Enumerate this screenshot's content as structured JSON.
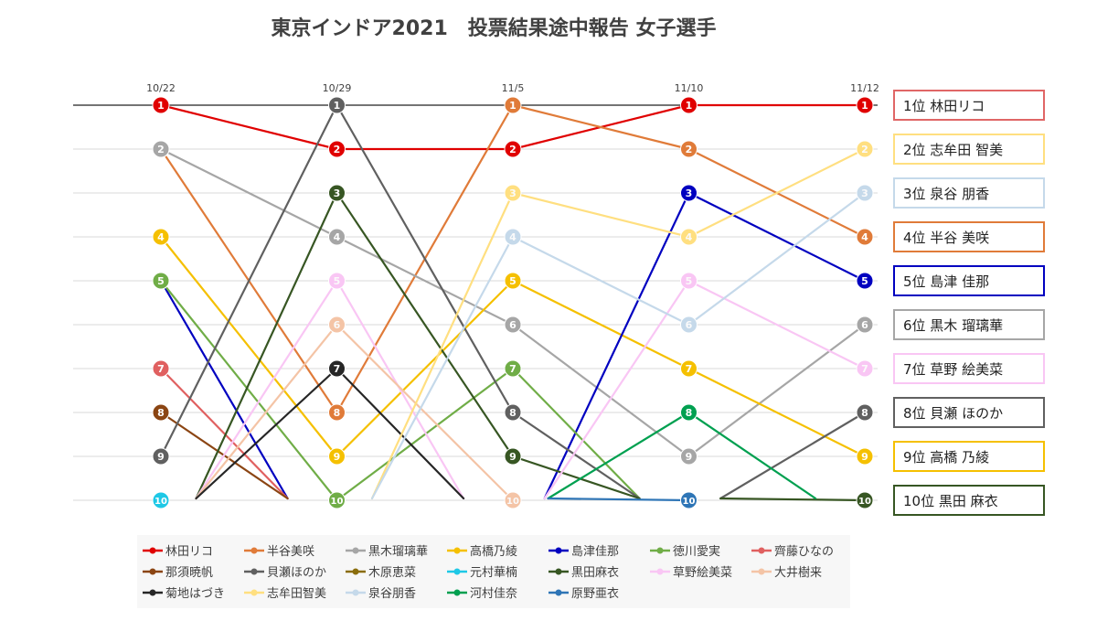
{
  "chart_data": {
    "type": "line",
    "title": "東京インドア2021　投票結果途中報告 女子選手",
    "x": [
      "10/22",
      "10/29",
      "11/5",
      "11/10",
      "11/12"
    ],
    "ylim": [
      1,
      10
    ],
    "y_reversed": true,
    "grid": true,
    "legend_position": "bottom",
    "series": [
      {
        "name": "林田リコ",
        "color": "#e00000",
        "values": [
          1,
          2,
          2,
          1,
          1
        ]
      },
      {
        "name": "半谷美咲",
        "color": "#e07b39",
        "values": [
          2,
          8,
          1,
          2,
          4
        ]
      },
      {
        "name": "黒木瑠璃華",
        "color": "#a6a6a6",
        "values": [
          2,
          4,
          6,
          9,
          6
        ]
      },
      {
        "name": "高橋乃綾",
        "color": "#f5c000",
        "values": [
          4,
          9,
          5,
          7,
          9
        ]
      },
      {
        "name": "島津佳那",
        "color": "#0000c0",
        "values": [
          5,
          null,
          null,
          3,
          5
        ]
      },
      {
        "name": "徳川愛実",
        "color": "#70ad47",
        "values": [
          5,
          10,
          7,
          null,
          null
        ]
      },
      {
        "name": "齊藤ひなの",
        "color": "#e06060",
        "values": [
          7,
          null,
          null,
          null,
          null
        ]
      },
      {
        "name": "那須暁帆",
        "color": "#8b4513",
        "values": [
          8,
          null,
          null,
          null,
          null
        ]
      },
      {
        "name": "貝瀬ほのか",
        "color": "#606060",
        "values": [
          9,
          1,
          8,
          null,
          8
        ]
      },
      {
        "name": "木原恵菜",
        "color": "#8a6d0b",
        "values": [
          null,
          null,
          null,
          null,
          null
        ]
      },
      {
        "name": "元村華楠",
        "color": "#1ec8e6",
        "values": [
          10,
          null,
          null,
          null,
          null
        ]
      },
      {
        "name": "黒田麻衣",
        "color": "#375623",
        "values": [
          null,
          3,
          9,
          null,
          10
        ]
      },
      {
        "name": "草野絵美菜",
        "color": "#f9c6f4",
        "values": [
          null,
          5,
          null,
          5,
          7
        ]
      },
      {
        "name": "大井樹来",
        "color": "#f4c4a6",
        "values": [
          null,
          6,
          10,
          null,
          null
        ]
      },
      {
        "name": "菊地はづき",
        "color": "#262626",
        "values": [
          null,
          7,
          null,
          null,
          null
        ]
      },
      {
        "name": "志牟田智美",
        "color": "#ffdf80",
        "values": [
          null,
          null,
          3,
          4,
          2
        ]
      },
      {
        "name": "泉谷朋香",
        "color": "#c5d9ea",
        "values": [
          null,
          null,
          4,
          6,
          3
        ]
      },
      {
        "name": "河村佳奈",
        "color": "#00a050",
        "values": [
          null,
          null,
          null,
          8,
          null
        ]
      },
      {
        "name": "原野亜衣",
        "color": "#2e75b6",
        "values": [
          null,
          null,
          null,
          10,
          null
        ]
      }
    ],
    "final_ranking": [
      {
        "label": "1位  林田リコ",
        "color": "#e06666"
      },
      {
        "label": "2位  志牟田 智美",
        "color": "#ffdf80"
      },
      {
        "label": "3位  泉谷  朋香",
        "color": "#c5d9ea"
      },
      {
        "label": "4位  半谷 美咲",
        "color": "#e07b39"
      },
      {
        "label": "5位  島津  佳那",
        "color": "#0000c0"
      },
      {
        "label": "6位  黒木 瑠璃華",
        "color": "#a6a6a6"
      },
      {
        "label": "7位  草野 絵美菜",
        "color": "#f9c6f4"
      },
      {
        "label": "8位  貝瀬 ほのか",
        "color": "#606060"
      },
      {
        "label": "9位  高橋  乃綾",
        "color": "#f5c000"
      },
      {
        "label": "10位  黒田 麻衣",
        "color": "#375623"
      }
    ],
    "legend": [
      {
        "name": "林田リコ",
        "color": "#e00000"
      },
      {
        "name": "半谷美咲",
        "color": "#e07b39"
      },
      {
        "name": "黒木瑠璃華",
        "color": "#a6a6a6"
      },
      {
        "name": "高橋乃綾",
        "color": "#f5c000"
      },
      {
        "name": "島津佳那",
        "color": "#0000c0"
      },
      {
        "name": "徳川愛実",
        "color": "#70ad47"
      },
      {
        "name": "齊藤ひなの",
        "color": "#e06060"
      },
      {
        "name": "那須暁帆",
        "color": "#8b4513"
      },
      {
        "name": "貝瀬ほのか",
        "color": "#606060"
      },
      {
        "name": "木原恵菜",
        "color": "#8a6d0b"
      },
      {
        "name": "元村華楠",
        "color": "#1ec8e6"
      },
      {
        "name": "黒田麻衣",
        "color": "#375623"
      },
      {
        "name": "草野絵美菜",
        "color": "#f9c6f4"
      },
      {
        "name": "大井樹来",
        "color": "#f4c4a6"
      },
      {
        "name": "菊地はづき",
        "color": "#262626"
      },
      {
        "name": "志牟田智美",
        "color": "#ffdf80"
      },
      {
        "name": "泉谷朋香",
        "color": "#c5d9ea"
      },
      {
        "name": "河村佳奈",
        "color": "#00a050"
      },
      {
        "name": "原野亜衣",
        "color": "#2e75b6"
      }
    ]
  }
}
